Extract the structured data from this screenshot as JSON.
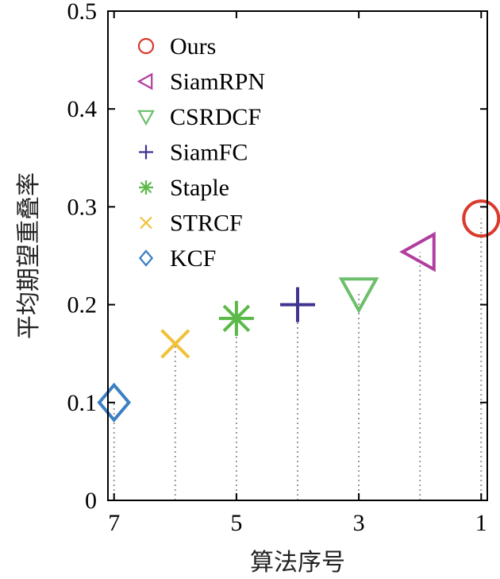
{
  "chart_data": {
    "type": "scatter",
    "xlabel": "算法序号",
    "ylabel": "平均期望重叠率",
    "xlim": [
      7.1,
      0.9
    ],
    "ylim": [
      0,
      0.5
    ],
    "xticks": [
      7,
      5,
      3,
      1
    ],
    "yticks": [
      0,
      0.1,
      0.2,
      0.3,
      0.4,
      0.5
    ],
    "grid": false,
    "stems": true,
    "legend_position": "top-left",
    "series": [
      {
        "name": "Ours",
        "x": 1,
        "y": 0.288,
        "marker": "circle",
        "color": "#d93a2b"
      },
      {
        "name": "SiamRPN",
        "x": 2,
        "y": 0.254,
        "marker": "triangle-left",
        "color": "#b03fa0"
      },
      {
        "name": "CSRDCF",
        "x": 3,
        "y": 0.212,
        "marker": "triangle-down",
        "color": "#6cbf6a"
      },
      {
        "name": "SiamFC",
        "x": 4,
        "y": 0.2,
        "marker": "plus",
        "color": "#3f3591"
      },
      {
        "name": "Staple",
        "x": 5,
        "y": 0.186,
        "marker": "star",
        "color": "#5ab947"
      },
      {
        "name": "STRCF",
        "x": 6,
        "y": 0.16,
        "marker": "x",
        "color": "#f0c13a"
      },
      {
        "name": "KCF",
        "x": 7,
        "y": 0.1,
        "marker": "diamond",
        "color": "#3b7fc4"
      }
    ]
  }
}
